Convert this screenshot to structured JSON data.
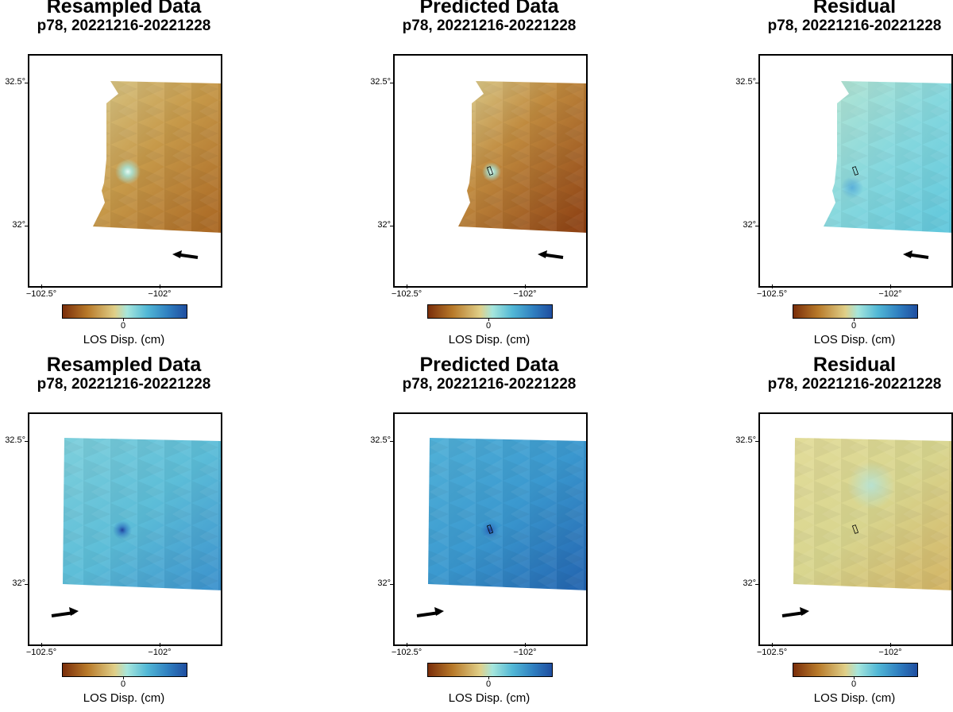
{
  "panels": [
    {
      "title": "Resampled Data",
      "subtitle": "p78, 20221216-20221228"
    },
    {
      "title": "Predicted Data",
      "subtitle": "p78, 20221216-20221228"
    },
    {
      "title": "Residual",
      "subtitle": "p78, 20221216-20221228"
    },
    {
      "title": "Resampled Data",
      "subtitle": "p78, 20221216-20221228"
    },
    {
      "title": "Predicted Data",
      "subtitle": "p78, 20221216-20221228"
    },
    {
      "title": "Residual",
      "subtitle": "p78, 20221216-20221228"
    }
  ],
  "axes": {
    "x_ticks": [
      "−102.5°",
      "−102°"
    ],
    "y_ticks": [
      "32.5°",
      "32°"
    ]
  },
  "colorbar": {
    "zero_label": "0",
    "label": "LOS Disp. (cm)",
    "colors": [
      "#7a2e0a",
      "#b87a2a",
      "#e0cf88",
      "#a6e6dc",
      "#52b8d6",
      "#2f7fc0",
      "#1f4ea0"
    ]
  },
  "chart_data": [
    {
      "type": "heatmap",
      "title": "Resampled Data",
      "subtitle": "p78, 20221216-20221228",
      "xlabel": "",
      "ylabel": "",
      "x_ticks": [
        -102.5,
        -102.0
      ],
      "y_ticks": [
        32.5,
        32.0
      ],
      "colorbar_label": "LOS Disp. (cm)",
      "row": 1,
      "col": 1,
      "arrow_direction": "west"
    },
    {
      "type": "heatmap",
      "title": "Predicted Data",
      "subtitle": "p78, 20221216-20221228",
      "xlabel": "",
      "ylabel": "",
      "x_ticks": [
        -102.5,
        -102.0
      ],
      "y_ticks": [
        32.5,
        32.0
      ],
      "colorbar_label": "LOS Disp. (cm)",
      "row": 1,
      "col": 2,
      "arrow_direction": "west"
    },
    {
      "type": "heatmap",
      "title": "Residual",
      "subtitle": "p78, 20221216-20221228",
      "xlabel": "",
      "ylabel": "",
      "x_ticks": [
        -102.5,
        -102.0
      ],
      "y_ticks": [
        32.5,
        32.0
      ],
      "colorbar_label": "LOS Disp. (cm)",
      "row": 1,
      "col": 3,
      "arrow_direction": "west"
    },
    {
      "type": "heatmap",
      "title": "Resampled Data",
      "subtitle": "p78, 20221216-20221228",
      "xlabel": "",
      "ylabel": "",
      "x_ticks": [
        -102.5,
        -102.0
      ],
      "y_ticks": [
        32.5,
        32.0
      ],
      "colorbar_label": "LOS Disp. (cm)",
      "row": 2,
      "col": 1,
      "arrow_direction": "east"
    },
    {
      "type": "heatmap",
      "title": "Predicted Data",
      "subtitle": "p78, 20221216-20221228",
      "xlabel": "",
      "ylabel": "",
      "x_ticks": [
        -102.5,
        -102.0
      ],
      "y_ticks": [
        32.5,
        32.0
      ],
      "colorbar_label": "LOS Disp. (cm)",
      "row": 2,
      "col": 2,
      "arrow_direction": "east"
    },
    {
      "type": "heatmap",
      "title": "Residual",
      "subtitle": "p78, 20221216-20221228",
      "xlabel": "",
      "ylabel": "",
      "x_ticks": [
        -102.5,
        -102.0
      ],
      "y_ticks": [
        32.5,
        32.0
      ],
      "colorbar_label": "LOS Disp. (cm)",
      "row": 2,
      "col": 3,
      "arrow_direction": "east"
    }
  ]
}
